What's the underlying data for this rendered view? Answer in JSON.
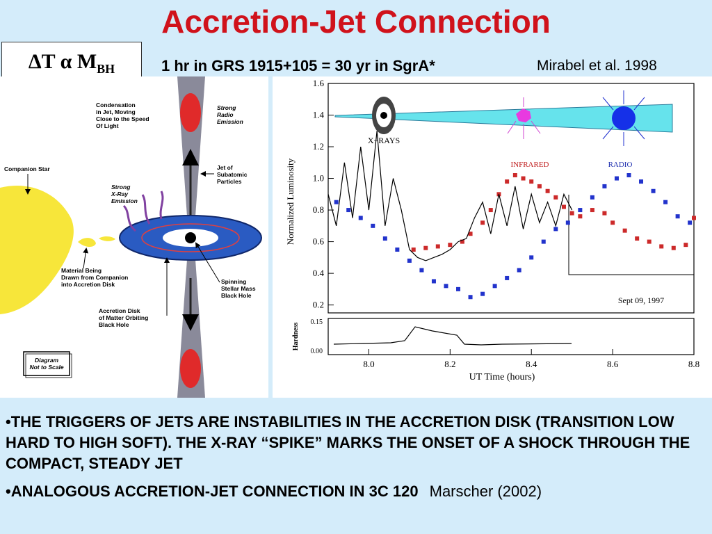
{
  "slide": {
    "title": "Accretion-Jet Connection",
    "formula": {
      "main": "ΔT α M",
      "sub": "BH"
    },
    "subtitle": "1 hr in GRS 1915+105 = 30 yr in SgrA*",
    "citation": "Mirabel et al. 1998"
  },
  "diagram": {
    "labels": {
      "condensation": [
        "Condensation",
        "in Jet, Moving",
        "Close to the Speed",
        "Of Light"
      ],
      "strong_radio": [
        "Strong",
        "Radio",
        "Emission"
      ],
      "companion_star": "Companion Star",
      "jet_particles": [
        "Jet of",
        "Subatomic",
        "Particles"
      ],
      "strong_xray": [
        "Strong",
        "X-Ray",
        "Emission"
      ],
      "material": [
        "Material Being",
        "Drawn from Companion",
        "into Accretion Disk"
      ],
      "spinning_bh": [
        "Spinning",
        "Stellar Mass",
        "Black Hole"
      ],
      "accretion_disk": [
        "Accretion Disk",
        "of Matter Orbiting",
        "Black Hole"
      ],
      "not_to_scale": [
        "Diagram",
        "Not to Scale"
      ]
    }
  },
  "chart_data": {
    "type": "scatter",
    "xlabel": "UT Time (hours)",
    "ylabel": "Normalized Luminosity",
    "xlim": [
      7.9,
      8.8
    ],
    "ylim": [
      0.15,
      1.6
    ],
    "xticks": [
      "8.0",
      "8.2",
      "8.4",
      "8.6",
      "8.8"
    ],
    "yticks": [
      "0.2",
      "0.4",
      "0.6",
      "0.8",
      "1.0",
      "1.2",
      "1.4",
      "1.6"
    ],
    "annotations": {
      "date": "Sept 09, 1997",
      "xrays": "X−RAYS",
      "infrared": "INFRARED",
      "radio": "RADIO"
    },
    "series": [
      {
        "name": "INFRARED",
        "color": "#cc2a2a",
        "x": [
          8.11,
          8.14,
          8.17,
          8.2,
          8.23,
          8.25,
          8.28,
          8.3,
          8.32,
          8.34,
          8.36,
          8.38,
          8.4,
          8.42,
          8.44,
          8.46,
          8.48,
          8.5,
          8.52,
          8.55,
          8.58,
          8.6,
          8.63,
          8.66,
          8.69,
          8.72,
          8.75,
          8.78,
          8.8
        ],
        "y": [
          0.55,
          0.56,
          0.57,
          0.58,
          0.6,
          0.65,
          0.72,
          0.8,
          0.9,
          0.98,
          1.02,
          1.0,
          0.98,
          0.95,
          0.92,
          0.88,
          0.82,
          0.78,
          0.76,
          0.8,
          0.78,
          0.72,
          0.67,
          0.62,
          0.6,
          0.57,
          0.56,
          0.58,
          0.75
        ]
      },
      {
        "name": "RADIO",
        "color": "#2233cc",
        "x": [
          7.92,
          7.95,
          7.98,
          8.01,
          8.04,
          8.07,
          8.1,
          8.13,
          8.16,
          8.19,
          8.22,
          8.25,
          8.28,
          8.31,
          8.34,
          8.37,
          8.4,
          8.43,
          8.46,
          8.49,
          8.52,
          8.55,
          8.58,
          8.61,
          8.64,
          8.67,
          8.7,
          8.73,
          8.76,
          8.79
        ],
        "y": [
          0.85,
          0.8,
          0.75,
          0.7,
          0.62,
          0.55,
          0.48,
          0.42,
          0.35,
          0.32,
          0.3,
          0.25,
          0.27,
          0.32,
          0.37,
          0.42,
          0.5,
          0.6,
          0.68,
          0.72,
          0.8,
          0.88,
          0.95,
          1.0,
          1.02,
          0.98,
          0.92,
          0.85,
          0.76,
          0.72
        ]
      },
      {
        "name": "X-RAYS",
        "color": "#000000",
        "x": [
          7.9,
          7.92,
          7.94,
          7.96,
          7.98,
          8.0,
          8.02,
          8.04,
          8.06,
          8.08,
          8.1,
          8.12,
          8.14,
          8.16,
          8.18,
          8.2,
          8.22,
          8.24,
          8.26,
          8.28,
          8.3,
          8.32,
          8.34,
          8.36,
          8.38,
          8.4,
          8.42,
          8.44,
          8.46,
          8.48,
          8.5
        ],
        "y": [
          0.9,
          0.7,
          1.1,
          0.75,
          1.2,
          0.8,
          1.3,
          0.7,
          1.0,
          0.8,
          0.55,
          0.5,
          0.48,
          0.5,
          0.52,
          0.55,
          0.6,
          0.62,
          0.75,
          0.85,
          0.65,
          0.9,
          0.7,
          0.95,
          0.68,
          0.9,
          0.72,
          0.85,
          0.7,
          0.9,
          0.8
        ]
      }
    ],
    "hardness": {
      "ylabel": "Hardness",
      "yticks": [
        "0.15",
        "0.00"
      ]
    }
  },
  "bullets": {
    "b1": "•THE TRIGGERS OF JETS ARE INSTABILITIES IN THE ACCRETION DISK (TRANSITION LOW HARD TO HIGH SOFT). THE X-RAY “SPIKE” MARKS THE ONSET OF A SHOCK THROUGH THE COMPACT, STEADY JET",
    "b2": "•ANALOGOUS ACCRETION-JET CONNECTION IN 3C 120",
    "b2_cite": "Marscher (2002)"
  }
}
